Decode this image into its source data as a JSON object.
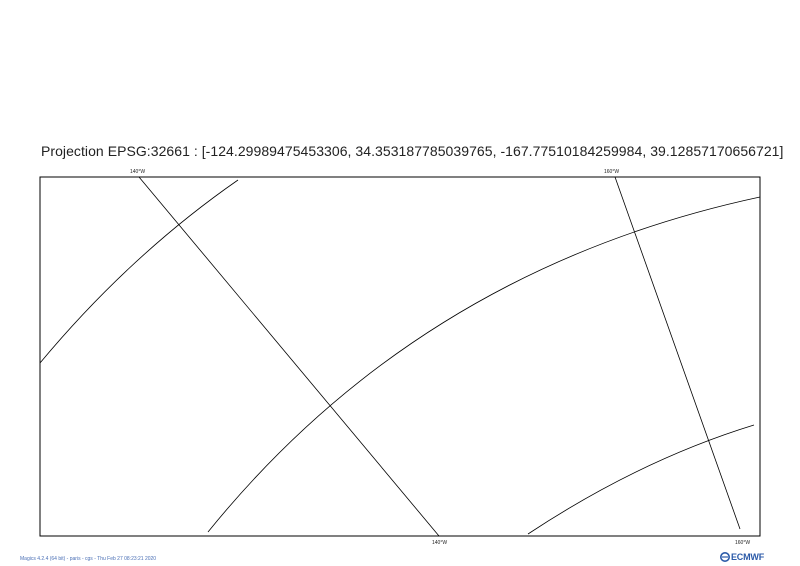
{
  "title": "Projection EPSG:32661 : [-124.29989475453306, 34.353187785039765, -167.77510184259984, 39.12857170656721]",
  "labels": {
    "top_left_meridian": "140°W",
    "top_right_meridian": "160°W",
    "bottom_left_meridian": "140°W",
    "bottom_right_meridian": "160°W"
  },
  "footer": {
    "text": "Magics 4.2.4 (64 bit) - paris - cgs - Thu Feb 27 08:23:21 2020",
    "logo_text": "ECMWF"
  },
  "colors": {
    "lines": "#000000",
    "footer_text": "#4a6fb5",
    "logo": "#2b5aa8"
  }
}
